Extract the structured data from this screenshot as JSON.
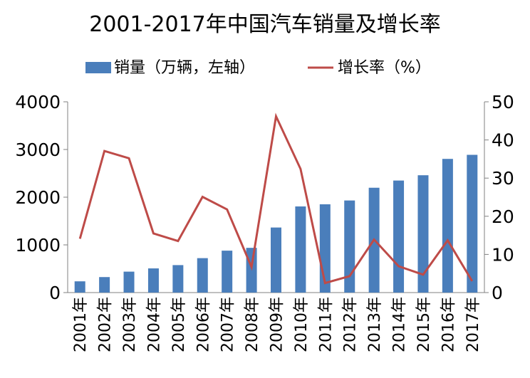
{
  "chart_data": {
    "type": "bar+line",
    "title": "2001-2017年中国汽车销量及增长率",
    "categories": [
      "2001年",
      "2002年",
      "2003年",
      "2004年",
      "2005年",
      "2006年",
      "2007年",
      "2008年",
      "2009年",
      "2010年",
      "2011年",
      "2012年",
      "2013年",
      "2014年",
      "2015年",
      "2016年",
      "2017年"
    ],
    "series": [
      {
        "name": "销量（万辆，左轴）",
        "type": "bar",
        "axis": "left",
        "color": "#4a7ebb",
        "values": [
          236,
          325,
          439,
          507,
          576,
          722,
          879,
          938,
          1364,
          1806,
          1851,
          1931,
          2198,
          2349,
          2460,
          2803,
          2888
        ]
      },
      {
        "name": "增长率（%）",
        "type": "line",
        "axis": "right",
        "color": "#be4b48",
        "values": [
          14.1,
          37.1,
          35.2,
          15.5,
          13.5,
          25.1,
          21.8,
          6.7,
          46.2,
          32.4,
          2.5,
          4.3,
          13.9,
          6.9,
          4.7,
          13.7,
          3.0
        ]
      }
    ],
    "y_left": {
      "range": [
        0,
        4000
      ],
      "ticks": [
        0,
        1000,
        2000,
        3000,
        4000
      ]
    },
    "y_right": {
      "range": [
        0,
        50
      ],
      "ticks": [
        0,
        10,
        20,
        30,
        40,
        50
      ]
    },
    "legend_position": "top",
    "grid": false
  }
}
